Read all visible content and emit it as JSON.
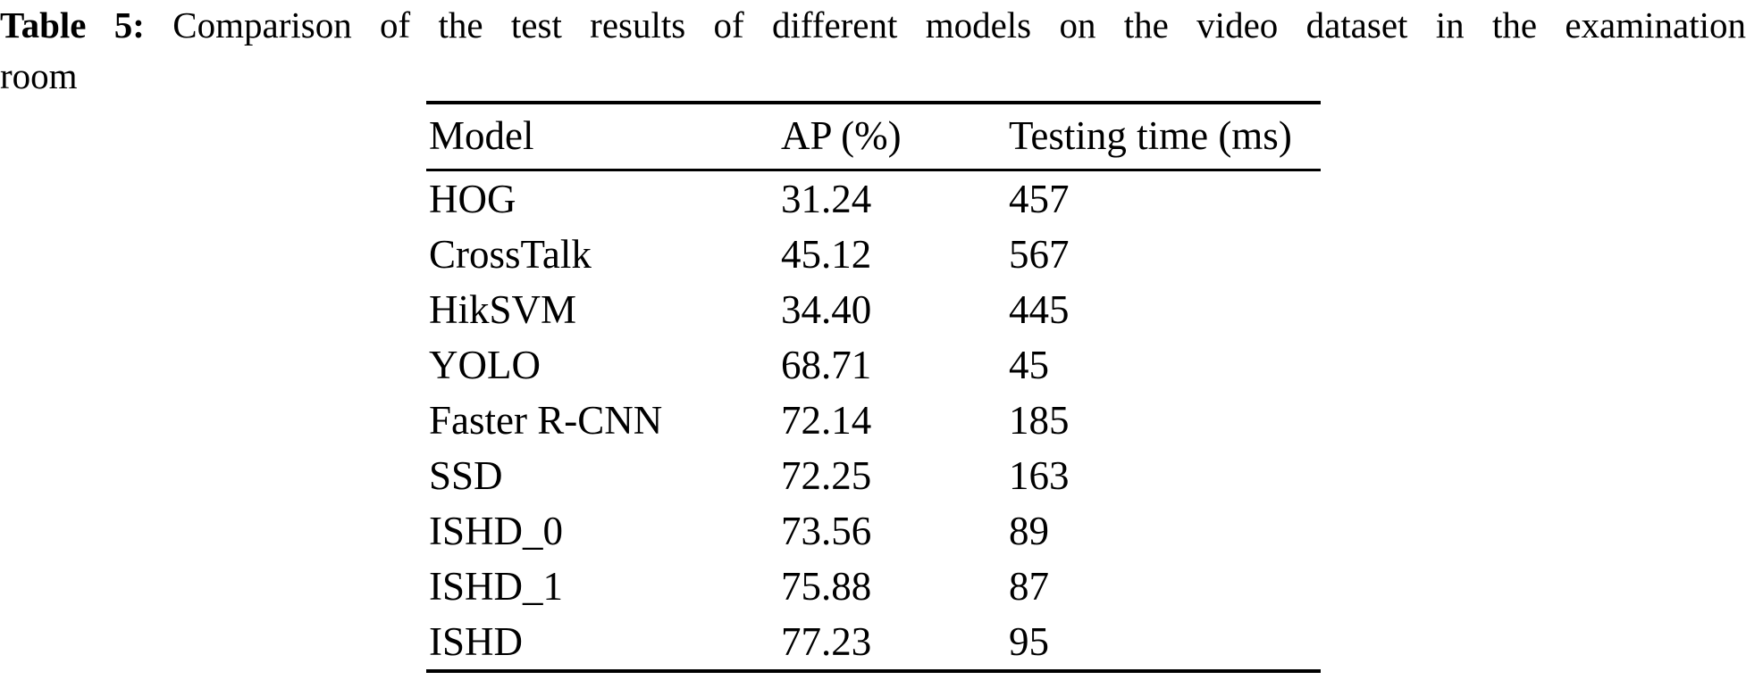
{
  "colors": {
    "background": "#ffffff",
    "text": "#000000",
    "rule": "#000000"
  },
  "caption": {
    "label": "Table 5:",
    "line1": "Comparison of the test results of different models on the video dataset in the examination",
    "line2": "room"
  },
  "table": {
    "columns": [
      "Model",
      "AP (%)",
      "Testing time (ms)"
    ],
    "rows": [
      [
        "HOG",
        "31.24",
        "457"
      ],
      [
        "CrossTalk",
        "45.12",
        "567"
      ],
      [
        "HikSVM",
        "34.40",
        "445"
      ],
      [
        "YOLO",
        "68.71",
        "45"
      ],
      [
        "Faster R-CNN",
        "72.14",
        "185"
      ],
      [
        "SSD",
        "72.25",
        "163"
      ],
      [
        "ISHD_0",
        "73.56",
        "89"
      ],
      [
        "ISHD_1",
        "75.88",
        "87"
      ],
      [
        "ISHD",
        "77.23",
        "95"
      ]
    ]
  }
}
